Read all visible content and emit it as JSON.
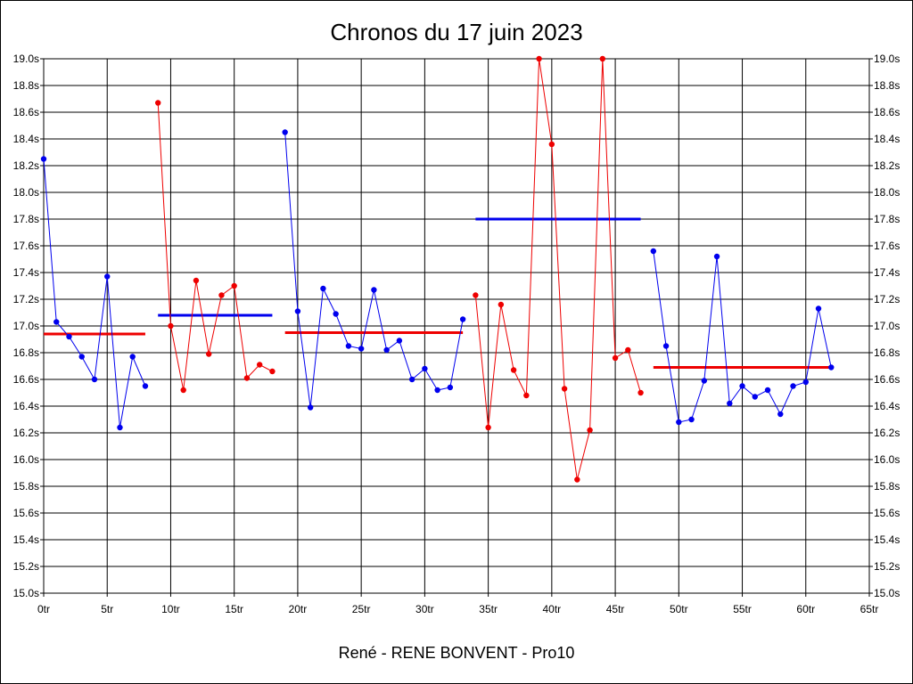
{
  "chart_data": {
    "type": "line",
    "title": "Chronos du 17 juin 2023",
    "xlabel": "René - RENE BONVENT - Pro10",
    "xlim": [
      0,
      65
    ],
    "ylim": [
      15.0,
      19.0
    ],
    "x_ticks": [
      "0tr",
      "5tr",
      "10tr",
      "15tr",
      "20tr",
      "25tr",
      "30tr",
      "35tr",
      "40tr",
      "45tr",
      "50tr",
      "55tr",
      "60tr",
      "65tr"
    ],
    "y_ticks": [
      "15.0s",
      "15.2s",
      "15.4s",
      "15.6s",
      "15.8s",
      "16.0s",
      "16.2s",
      "16.4s",
      "16.6s",
      "16.8s",
      "17.0s",
      "17.2s",
      "17.4s",
      "17.6s",
      "17.8s",
      "18.0s",
      "18.2s",
      "18.4s",
      "18.6s",
      "18.8s",
      "19.0s"
    ],
    "grid": true,
    "colors": {
      "blue": "#0000ee",
      "red": "#ee0000"
    },
    "series": [
      {
        "color": "blue",
        "points": [
          [
            0,
            18.25
          ],
          [
            1,
            17.03
          ],
          [
            2,
            16.92
          ],
          [
            3,
            16.77
          ],
          [
            4,
            16.6
          ],
          [
            5,
            17.37
          ],
          [
            6,
            16.24
          ],
          [
            7,
            16.77
          ],
          [
            8,
            16.55
          ]
        ]
      },
      {
        "color": "red",
        "points": [
          [
            9,
            18.67
          ],
          [
            10,
            17.0
          ],
          [
            11,
            16.52
          ],
          [
            12,
            17.34
          ],
          [
            13,
            16.79
          ],
          [
            14,
            17.23
          ],
          [
            15,
            17.3
          ],
          [
            16,
            16.61
          ],
          [
            17,
            16.71
          ],
          [
            18,
            16.66
          ]
        ]
      },
      {
        "color": "blue",
        "points": [
          [
            19,
            18.45
          ],
          [
            20,
            17.11
          ],
          [
            21,
            16.39
          ],
          [
            22,
            17.28
          ],
          [
            23,
            17.09
          ],
          [
            24,
            16.85
          ],
          [
            25,
            16.83
          ],
          [
            26,
            17.27
          ],
          [
            27,
            16.82
          ],
          [
            28,
            16.89
          ],
          [
            29,
            16.6
          ],
          [
            30,
            16.68
          ],
          [
            31,
            16.52
          ],
          [
            32,
            16.54
          ],
          [
            33,
            17.05
          ]
        ]
      },
      {
        "color": "red",
        "points": [
          [
            34,
            17.23
          ],
          [
            35,
            16.24
          ],
          [
            36,
            17.16
          ],
          [
            37,
            16.67
          ],
          [
            38,
            16.48
          ],
          [
            39,
            19.0
          ],
          [
            40,
            18.36
          ],
          [
            41,
            16.53
          ],
          [
            42,
            15.85
          ],
          [
            43,
            16.22
          ],
          [
            44,
            19.0
          ],
          [
            45,
            16.76
          ],
          [
            46,
            16.82
          ],
          [
            47,
            16.5
          ]
        ]
      },
      {
        "color": "blue",
        "points": [
          [
            48,
            17.56
          ],
          [
            49,
            16.85
          ],
          [
            50,
            16.28
          ],
          [
            51,
            16.3
          ],
          [
            52,
            16.59
          ],
          [
            53,
            17.52
          ],
          [
            54,
            16.42
          ],
          [
            55,
            16.55
          ],
          [
            56,
            16.47
          ],
          [
            57,
            16.52
          ],
          [
            58,
            16.34
          ],
          [
            59,
            16.55
          ],
          [
            60,
            16.58
          ],
          [
            61,
            17.13
          ],
          [
            62,
            16.69
          ]
        ]
      }
    ],
    "averages": [
      {
        "color": "red",
        "x": [
          0,
          8
        ],
        "y": 16.94
      },
      {
        "color": "blue",
        "x": [
          9,
          18
        ],
        "y": 17.08
      },
      {
        "color": "red",
        "x": [
          19,
          33
        ],
        "y": 16.95
      },
      {
        "color": "blue",
        "x": [
          34,
          47
        ],
        "y": 17.8
      },
      {
        "color": "red",
        "x": [
          48,
          62
        ],
        "y": 16.69
      }
    ]
  }
}
